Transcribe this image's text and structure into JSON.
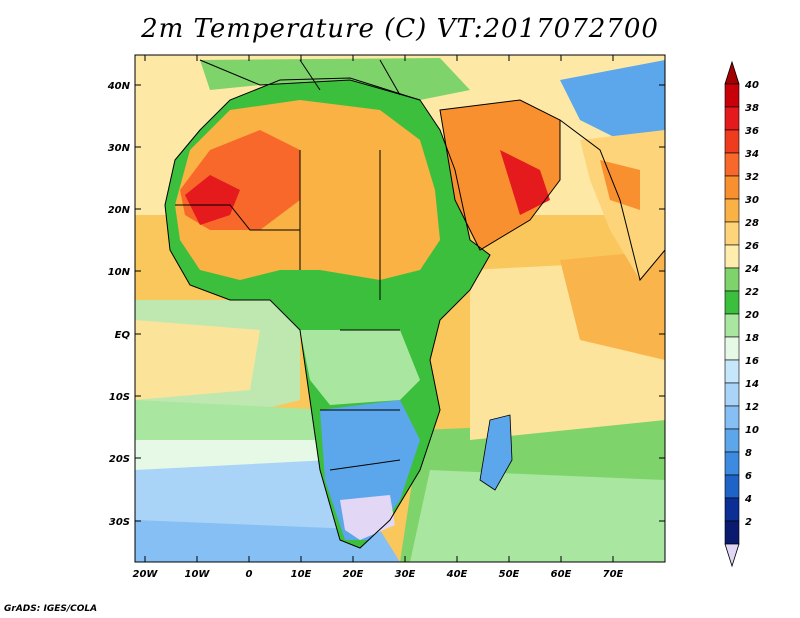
{
  "title": "2m Temperature (C) VT:2017072700",
  "credit": "GrADS: IGES/COLA",
  "lat_labels": [
    "40N",
    "30N",
    "20N",
    "10N",
    "EQ",
    "10S",
    "20S",
    "30S"
  ],
  "lon_labels": [
    "20W",
    "10W",
    "0",
    "10E",
    "20E",
    "30E",
    "40E",
    "50E",
    "60E",
    "70E"
  ],
  "colorbar": {
    "labels": [
      "40",
      "38",
      "36",
      "34",
      "32",
      "30",
      "28",
      "26",
      "24",
      "22",
      "20",
      "18",
      "16",
      "14",
      "12",
      "10",
      "8",
      "6",
      "4",
      "2"
    ],
    "colors": [
      "#c8000a",
      "#e41a1c",
      "#f03c1e",
      "#f7682a",
      "#f9902f",
      "#fbb244",
      "#fdd479",
      "#ffedae",
      "#7ed36a",
      "#3cbf3c",
      "#a9e6a0",
      "#e6f8e6",
      "#c6e6fb",
      "#a9d4f7",
      "#86bff3",
      "#5ca6ec",
      "#3c8be0",
      "#1e63c8",
      "#0c2f96",
      "#0a1a6e"
    ],
    "top_arrow": "#a50000",
    "bottom_arrow": "#e2d8f5"
  },
  "map": {
    "lon_range": [
      -22,
      80
    ],
    "lat_range": [
      -36,
      46
    ]
  }
}
